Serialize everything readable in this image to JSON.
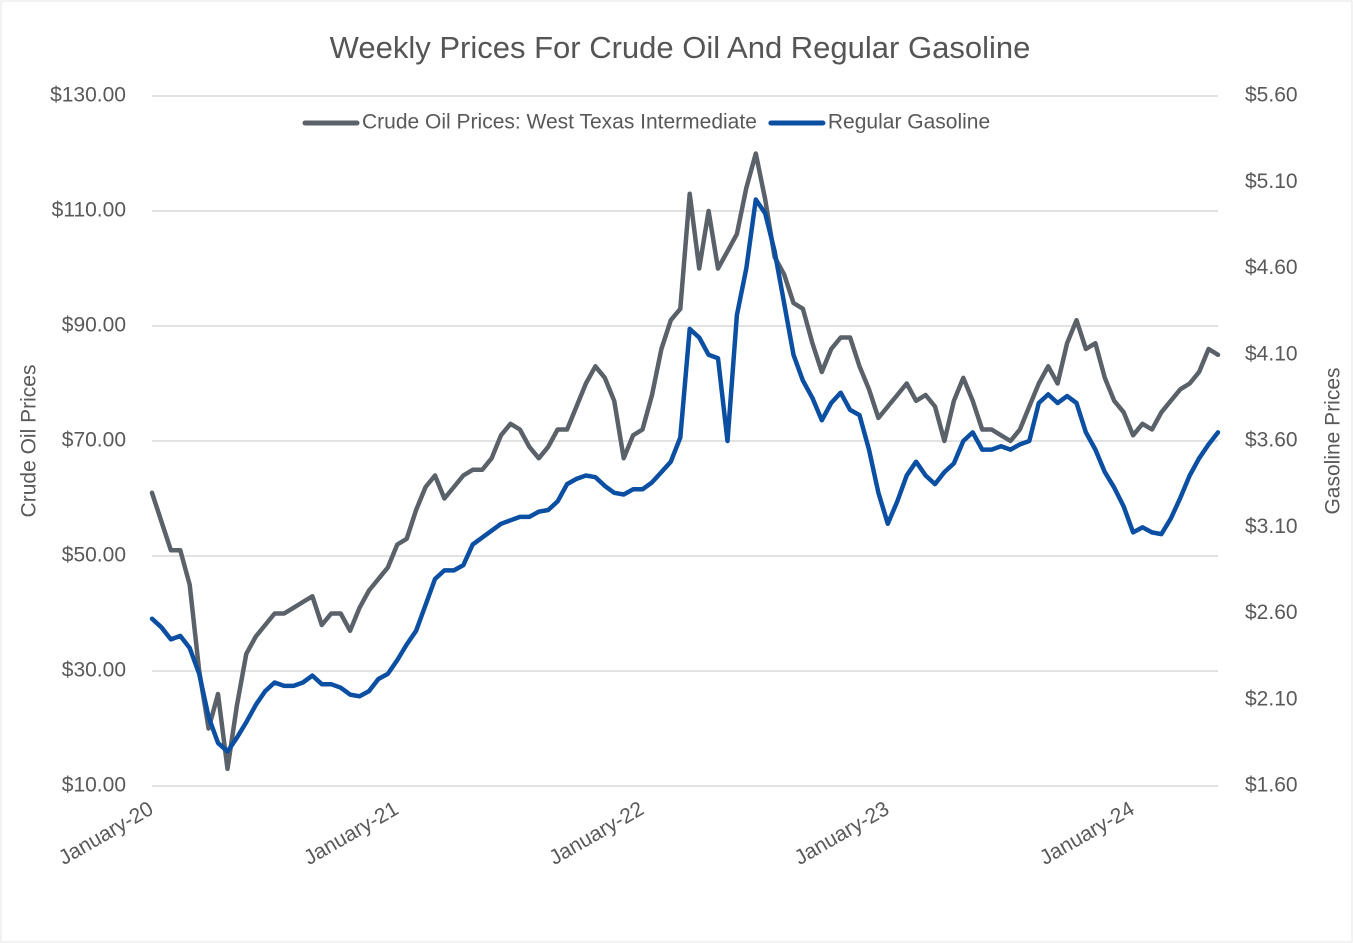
{
  "chart_data": {
    "type": "line",
    "title": "Weekly Prices For Crude Oil And Regular Gasoline",
    "ylabel": "Crude Oil Prices",
    "y2label": "Gasoline Prices",
    "legend": "top",
    "grid": true,
    "categories": [
      "January-20",
      null,
      null,
      null,
      null,
      null,
      null,
      null,
      null,
      null,
      null,
      null,
      null,
      null,
      null,
      null,
      null,
      null,
      null,
      null,
      null,
      null,
      null,
      null,
      null,
      null,
      "January-21",
      null,
      null,
      null,
      null,
      null,
      null,
      null,
      null,
      null,
      null,
      null,
      null,
      null,
      null,
      null,
      null,
      null,
      null,
      null,
      null,
      null,
      null,
      null,
      null,
      null,
      "January-22",
      null,
      null,
      null,
      null,
      null,
      null,
      null,
      null,
      null,
      null,
      null,
      null,
      null,
      null,
      null,
      null,
      null,
      null,
      null,
      null,
      null,
      null,
      null,
      null,
      null,
      "January-23",
      null,
      null,
      null,
      null,
      null,
      null,
      null,
      null,
      null,
      null,
      null,
      null,
      null,
      null,
      null,
      null,
      null,
      null,
      null,
      null,
      null,
      null,
      null,
      null,
      null,
      "January-24",
      null,
      null,
      null,
      null,
      null,
      null,
      null,
      null,
      null
    ],
    "ylim": [
      10,
      130
    ],
    "yticks": [
      {
        "value": 10,
        "label": "$10.00"
      },
      {
        "value": 30,
        "label": "$30.00"
      },
      {
        "value": 50,
        "label": "$50.00"
      },
      {
        "value": 70,
        "label": "$70.00"
      },
      {
        "value": 90,
        "label": "$90.00"
      },
      {
        "value": 110,
        "label": "$110.00"
      },
      {
        "value": 130,
        "label": "$130.00"
      }
    ],
    "y2lim": [
      1.6,
      5.6
    ],
    "y2ticks": [
      {
        "value": 1.6,
        "label": "$1.60"
      },
      {
        "value": 2.1,
        "label": "$2.10"
      },
      {
        "value": 2.6,
        "label": "$2.60"
      },
      {
        "value": 3.1,
        "label": "$3.10"
      },
      {
        "value": 3.6,
        "label": "$3.60"
      },
      {
        "value": 4.1,
        "label": "$4.10"
      },
      {
        "value": 4.6,
        "label": "$4.60"
      },
      {
        "value": 5.1,
        "label": "$5.10"
      },
      {
        "value": 5.6,
        "label": "$5.60"
      }
    ],
    "series": [
      {
        "name": "Crude Oil Prices: West Texas Intermediate",
        "color": "#5a6169",
        "axis": "y",
        "values": [
          61,
          56,
          51,
          51,
          45,
          30,
          20,
          26,
          13,
          24,
          33,
          36,
          38,
          40,
          40,
          41,
          42,
          43,
          38,
          40,
          40,
          37,
          41,
          44,
          46,
          48,
          52,
          53,
          58,
          62,
          64,
          60,
          62,
          64,
          65,
          65,
          67,
          71,
          73,
          72,
          69,
          67,
          69,
          72,
          72,
          76,
          80,
          83,
          81,
          77,
          67,
          71,
          72,
          78,
          86,
          91,
          93,
          113,
          100,
          110,
          100,
          103,
          106,
          114,
          120,
          112,
          102,
          99,
          94,
          93,
          87,
          82,
          86,
          88,
          88,
          83,
          79,
          74,
          76,
          78,
          80,
          77,
          78,
          76,
          70,
          77,
          81,
          77,
          72,
          72,
          71,
          70,
          72,
          76,
          80,
          83,
          80,
          87,
          91,
          86,
          87,
          81,
          77,
          75,
          71,
          73,
          72,
          75,
          77,
          79,
          80,
          82,
          86,
          85
        ]
      },
      {
        "name": "Regular Gasoline",
        "color": "#0b4fa3",
        "axis": "y2",
        "values": [
          2.57,
          2.52,
          2.45,
          2.47,
          2.4,
          2.25,
          2.0,
          1.85,
          1.8,
          1.88,
          1.97,
          2.07,
          2.15,
          2.2,
          2.18,
          2.18,
          2.2,
          2.24,
          2.19,
          2.19,
          2.17,
          2.13,
          2.12,
          2.15,
          2.22,
          2.25,
          2.33,
          2.42,
          2.5,
          2.65,
          2.8,
          2.85,
          2.85,
          2.88,
          3.0,
          3.04,
          3.08,
          3.12,
          3.14,
          3.16,
          3.16,
          3.19,
          3.2,
          3.25,
          3.35,
          3.38,
          3.4,
          3.39,
          3.34,
          3.3,
          3.29,
          3.32,
          3.32,
          3.36,
          3.42,
          3.48,
          3.62,
          4.25,
          4.2,
          4.1,
          4.08,
          3.6,
          4.33,
          4.6,
          5.0,
          4.92,
          4.7,
          4.4,
          4.1,
          3.95,
          3.85,
          3.72,
          3.82,
          3.88,
          3.78,
          3.75,
          3.55,
          3.3,
          3.12,
          3.25,
          3.4,
          3.48,
          3.4,
          3.35,
          3.42,
          3.47,
          3.6,
          3.65,
          3.55,
          3.55,
          3.57,
          3.55,
          3.58,
          3.6,
          3.82,
          3.87,
          3.82,
          3.86,
          3.82,
          3.65,
          3.55,
          3.42,
          3.33,
          3.22,
          3.07,
          3.1,
          3.07,
          3.06,
          3.15,
          3.27,
          3.4,
          3.5,
          3.58,
          3.65
        ]
      }
    ]
  }
}
